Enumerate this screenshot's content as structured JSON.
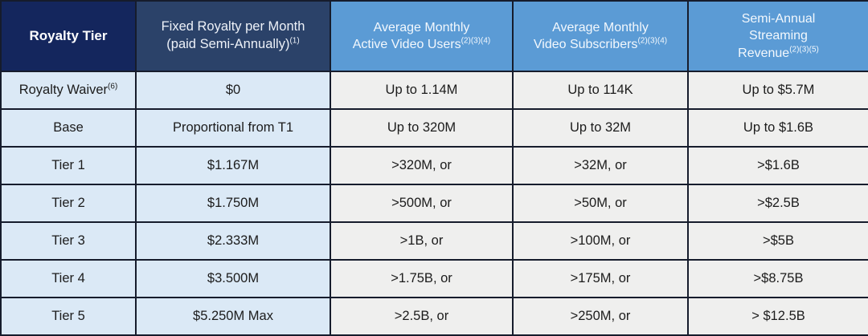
{
  "table": {
    "headers": [
      {
        "line1": "Royalty Tier",
        "sup": ""
      },
      {
        "line1": "Fixed Royalty per Month",
        "line2": "(paid Semi-Annually)",
        "sup": "(1)"
      },
      {
        "line1": "Average Monthly",
        "line2": "Active Video Users",
        "sup": "(2)(3)(4)"
      },
      {
        "line1": "Average Monthly",
        "line2": "Video Subscribers",
        "sup": "(2)(3)(4)"
      },
      {
        "line1": "Semi-Annual",
        "line2": "Streaming",
        "line3": "Revenue",
        "sup": "(2)(3)(5)"
      }
    ],
    "rows": [
      {
        "tier": "Royalty Waiver",
        "tier_sup": "(6)",
        "fixed_royalty": "$0",
        "active_users": "Up to 1.14M",
        "subscribers": "Up to 114K",
        "revenue": "Up to $5.7M"
      },
      {
        "tier": "Base",
        "tier_sup": "",
        "fixed_royalty": "Proportional from T1",
        "active_users": "Up to 320M",
        "subscribers": "Up to 32M",
        "revenue": "Up to $1.6B"
      },
      {
        "tier": "Tier 1",
        "tier_sup": "",
        "fixed_royalty": "$1.167M",
        "active_users": ">320M, or",
        "subscribers": ">32M, or",
        "revenue": ">$1.6B"
      },
      {
        "tier": "Tier 2",
        "tier_sup": "",
        "fixed_royalty": "$1.750M",
        "active_users": ">500M, or",
        "subscribers": ">50M, or",
        "revenue": ">$2.5B"
      },
      {
        "tier": "Tier 3",
        "tier_sup": "",
        "fixed_royalty": "$2.333M",
        "active_users": ">1B, or",
        "subscribers": ">100M, or",
        "revenue": ">$5B"
      },
      {
        "tier": "Tier 4",
        "tier_sup": "",
        "fixed_royalty": "$3.500M",
        "active_users": ">1.75B, or",
        "subscribers": ">175M, or",
        "revenue": ">$8.75B"
      },
      {
        "tier": "Tier 5",
        "tier_sup": "",
        "fixed_royalty": "$5.250M Max",
        "active_users": ">2.5B, or",
        "subscribers": ">250M, or",
        "revenue": "> $12.5B"
      }
    ],
    "colors": {
      "header_navy": "#14265d",
      "header_slate": "#2b4269",
      "header_blue": "#5b9bd5",
      "cell_light_blue": "#dbe9f6",
      "cell_light_gray": "#efefee",
      "border": "#161c2c",
      "header_text": "#ffffff",
      "cell_text": "#1c1c1c"
    }
  }
}
